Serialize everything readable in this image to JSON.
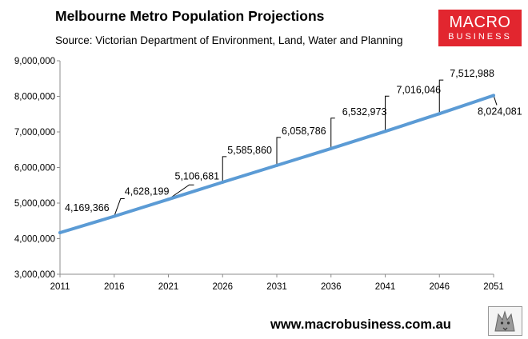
{
  "header": {
    "title": "Melbourne Metro Population Projections",
    "subtitle": "Source: Victorian Department of Environment, Land, Water and Planning"
  },
  "logo": {
    "line1": "MACRO",
    "line2": "BUSINESS"
  },
  "footer": {
    "website": "www.macrobusiness.com.au",
    "badge_icon": "wolf-icon"
  },
  "chart_data": {
    "type": "line",
    "title": "Melbourne Metro Population Projections",
    "x": [
      2011,
      2016,
      2021,
      2026,
      2031,
      2036,
      2041,
      2046,
      2051
    ],
    "x_tick_labels": [
      "2011",
      "2016",
      "2021",
      "2026",
      "2031",
      "2036",
      "2041",
      "2046",
      "2051"
    ],
    "series": [
      {
        "values": [
          4169366,
          4628199,
          5106681,
          5585860,
          6058786,
          6532973,
          7016046,
          7512988,
          8024081
        ]
      }
    ],
    "data_labels": [
      "4,169,366",
      "4,628,199",
      "5,106,681",
      "5,585,860",
      "6,058,786",
      "6,532,973",
      "7,016,046",
      "7,512,988",
      "8,024,081"
    ],
    "y_tick_values": [
      3000000,
      4000000,
      5000000,
      6000000,
      7000000,
      8000000,
      9000000
    ],
    "y_tick_labels": [
      "3,000,000",
      "4,000,000",
      "5,000,000",
      "6,000,000",
      "7,000,000",
      "8,000,000",
      "9,000,000"
    ],
    "ylim": [
      3000000,
      9000000
    ],
    "xlim": [
      2011,
      2051
    ],
    "xlabel": "",
    "ylabel": "",
    "grid": false,
    "legend": "none",
    "line_color": "#5b9bd5"
  }
}
